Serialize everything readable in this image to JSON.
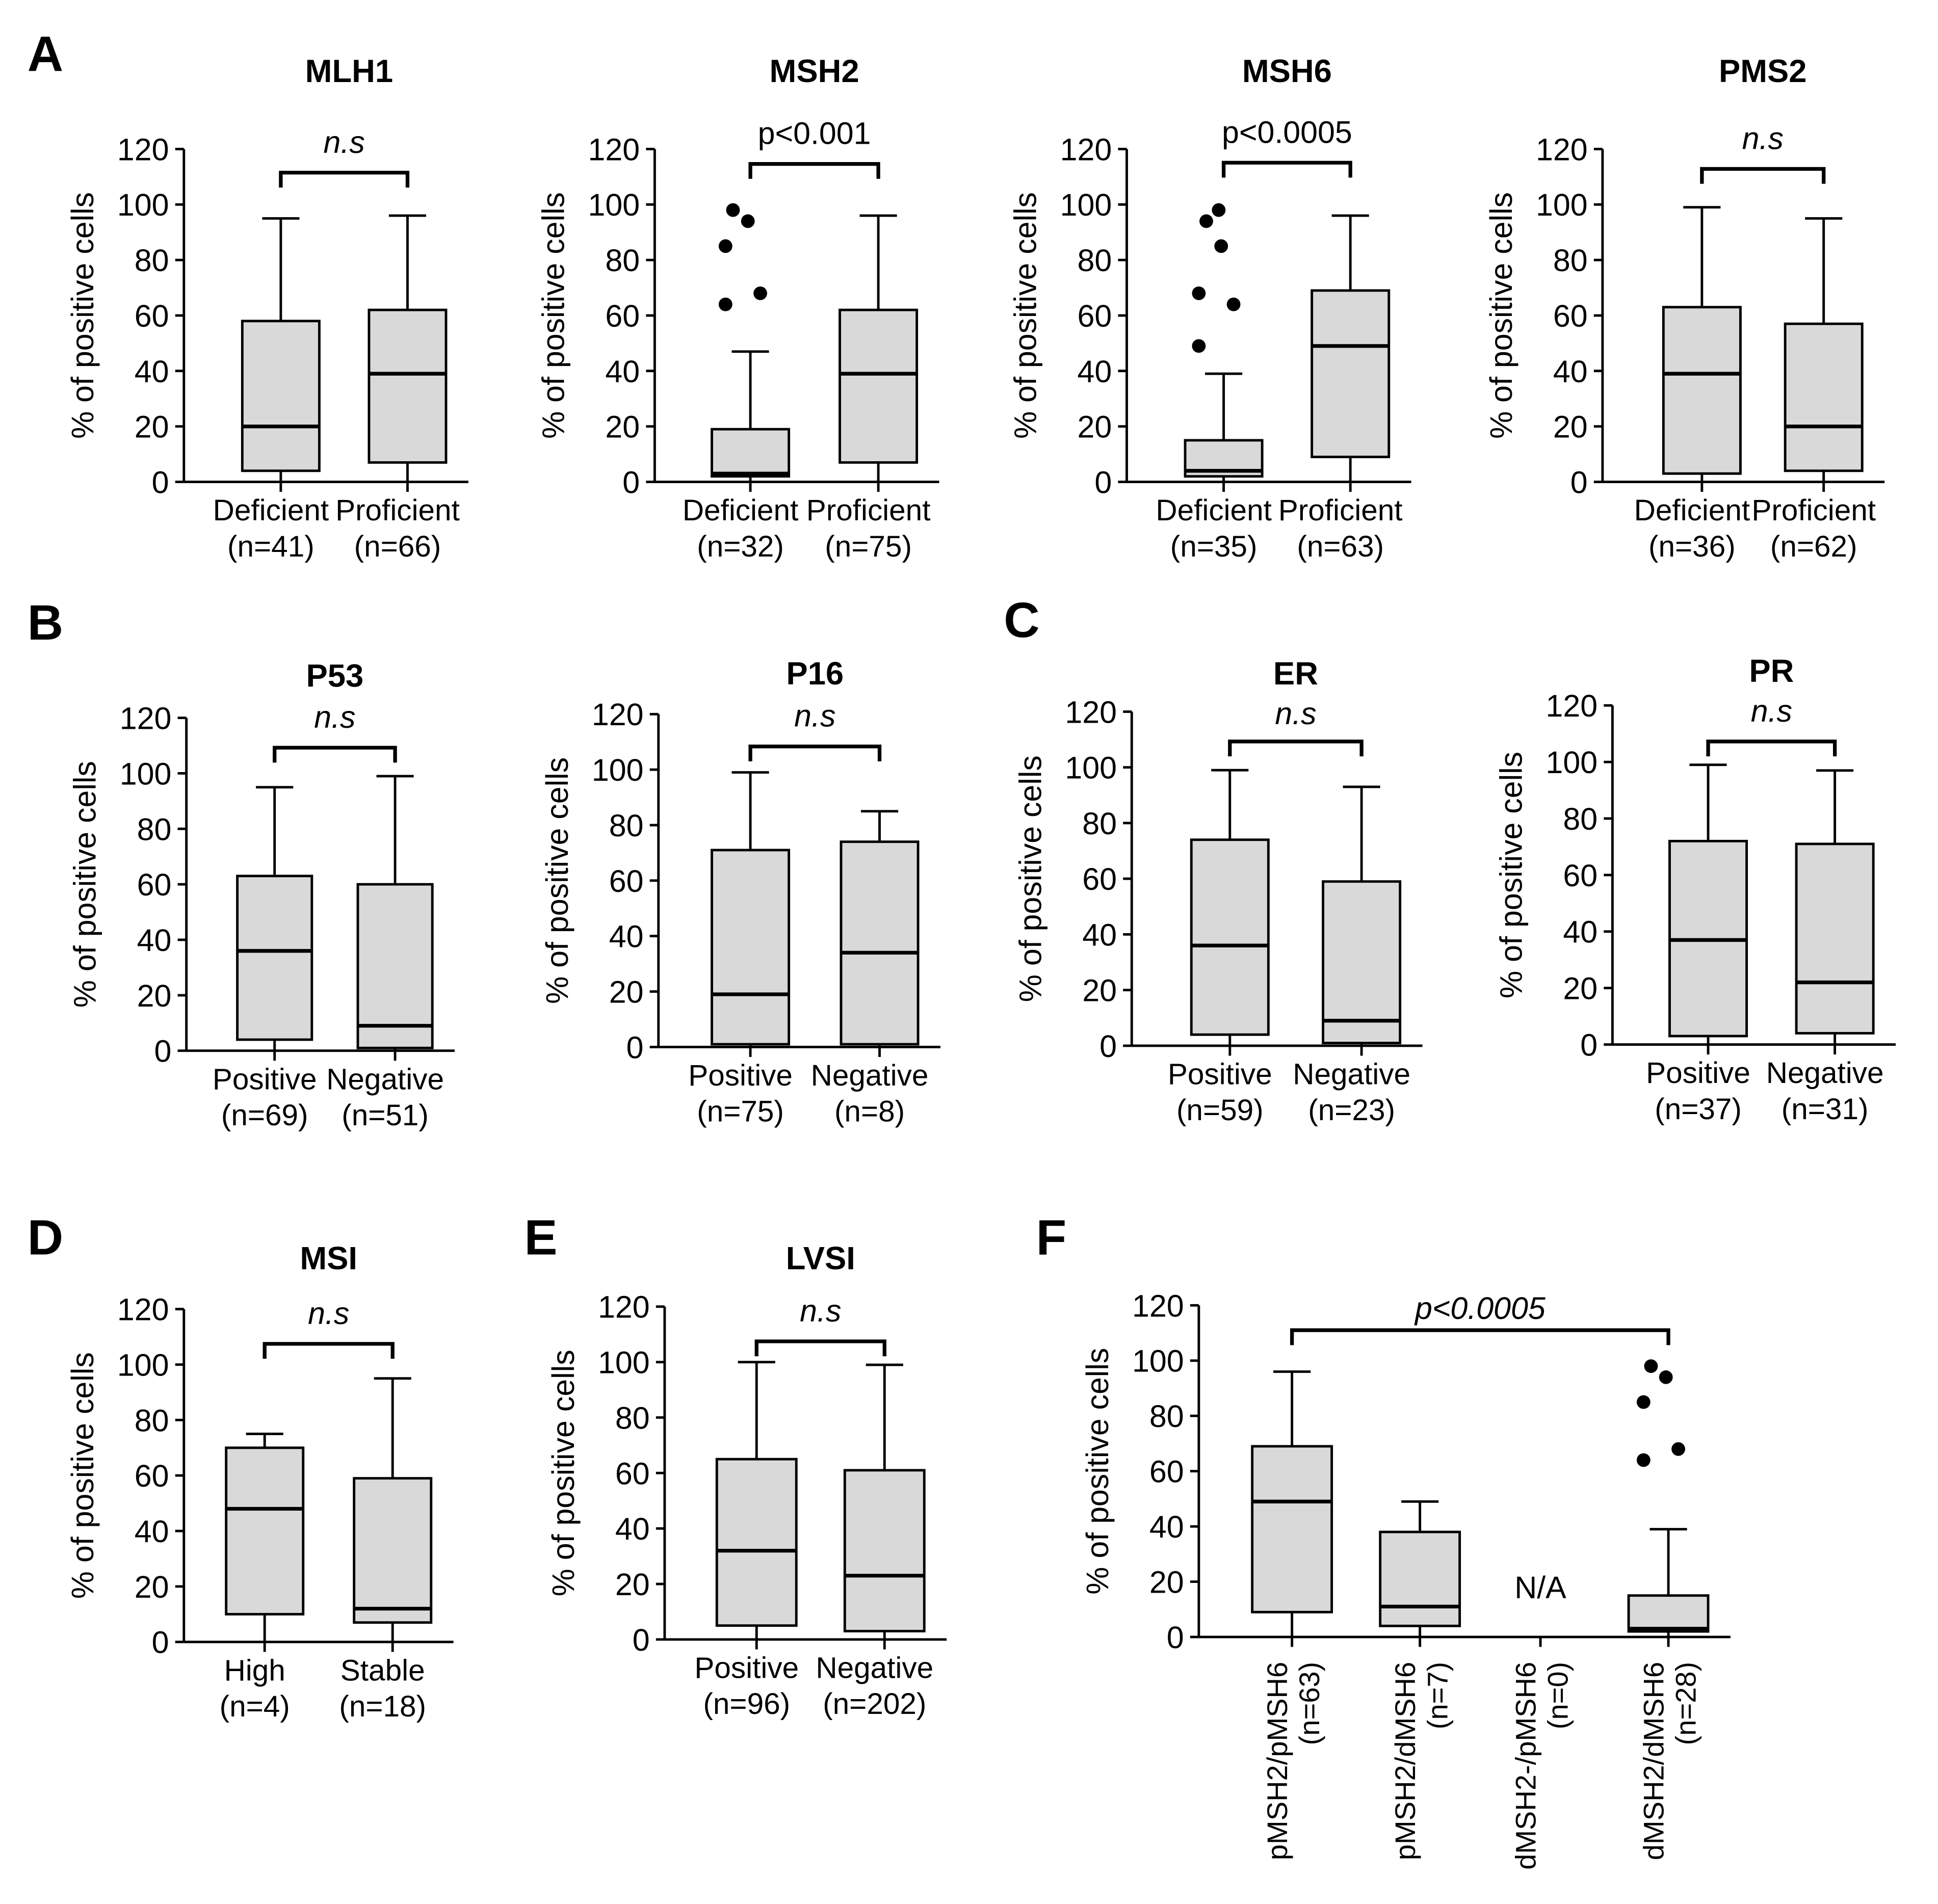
{
  "figure": {
    "y_axis_label": "% of positive cells",
    "y_ticks": [
      "0",
      "20",
      "40",
      "60",
      "80",
      "100",
      "120"
    ]
  },
  "panel_letters": [
    "A",
    "B",
    "C",
    "D",
    "E",
    "F"
  ],
  "colors": {
    "box_fill": "#d9d9d9",
    "stroke": "#000000",
    "background": "#ffffff"
  },
  "chart_data": [
    {
      "type": "boxplot",
      "panel": "A",
      "title": "MLH1",
      "ylim": [
        0,
        120
      ],
      "ylabel": "% of positive cells",
      "significance": "n.s",
      "sig_italic": true,
      "groups": [
        {
          "label": "Deficient",
          "n": "(n=41)",
          "min": 0,
          "q1": 4,
          "median": 20,
          "q3": 58,
          "max": 95,
          "outliers": []
        },
        {
          "label": "Proficient",
          "n": "(n=66)",
          "min": 0,
          "q1": 7,
          "median": 39,
          "q3": 62,
          "max": 96,
          "outliers": []
        }
      ]
    },
    {
      "type": "boxplot",
      "panel": "A",
      "title": "MSH2",
      "ylim": [
        0,
        120
      ],
      "ylabel": "% of positive cells",
      "significance": "p<0.001",
      "sig_italic": false,
      "groups": [
        {
          "label": "Deficient",
          "n": "(n=32)",
          "min": 0,
          "q1": 2,
          "median": 3,
          "q3": 19,
          "max": 47,
          "outliers": [
            64,
            68,
            85,
            94,
            98
          ]
        },
        {
          "label": "Proficient",
          "n": "(n=75)",
          "min": 0,
          "q1": 7,
          "median": 39,
          "q3": 62,
          "max": 96,
          "outliers": []
        }
      ]
    },
    {
      "type": "boxplot",
      "panel": "A",
      "title": "MSH6",
      "ylim": [
        0,
        120
      ],
      "ylabel": "% of positive cells",
      "significance": "p<0.0005",
      "sig_italic": false,
      "groups": [
        {
          "label": "Deficient",
          "n": "(n=35)",
          "min": 0,
          "q1": 2,
          "median": 4,
          "q3": 15,
          "max": 39,
          "outliers": [
            49,
            64,
            68,
            85,
            94,
            98
          ]
        },
        {
          "label": "Proficient",
          "n": "(n=63)",
          "min": 0,
          "q1": 9,
          "median": 49,
          "q3": 69,
          "max": 96,
          "outliers": []
        }
      ]
    },
    {
      "type": "boxplot",
      "panel": "A",
      "title": "PMS2",
      "ylim": [
        0,
        120
      ],
      "ylabel": "% of positive cells",
      "significance": "n.s",
      "sig_italic": true,
      "groups": [
        {
          "label": "Deficient",
          "n": "(n=36)",
          "min": 0,
          "q1": 3,
          "median": 39,
          "q3": 63,
          "max": 99,
          "outliers": []
        },
        {
          "label": "Proficient",
          "n": "(n=62)",
          "min": 0,
          "q1": 4,
          "median": 20,
          "q3": 57,
          "max": 95,
          "outliers": []
        }
      ]
    },
    {
      "type": "boxplot",
      "panel": "B",
      "title": "P53",
      "ylim": [
        0,
        120
      ],
      "ylabel": "% of positive cells",
      "significance": "n.s",
      "sig_italic": true,
      "groups": [
        {
          "label": "Positive",
          "n": "(n=69)",
          "min": 0,
          "q1": 4,
          "median": 36,
          "q3": 63,
          "max": 95,
          "outliers": []
        },
        {
          "label": "Negative",
          "n": "(n=51)",
          "min": 0,
          "q1": 1,
          "median": 9,
          "q3": 60,
          "max": 99,
          "outliers": []
        }
      ]
    },
    {
      "type": "boxplot",
      "panel": "B",
      "title": "P16",
      "ylim": [
        0,
        120
      ],
      "ylabel": "% of positive cells",
      "significance": "n.s",
      "sig_italic": true,
      "groups": [
        {
          "label": "Positive",
          "n": "(n=75)",
          "min": 0,
          "q1": 1,
          "median": 19,
          "q3": 71,
          "max": 99,
          "outliers": []
        },
        {
          "label": "Negative",
          "n": "(n=8)",
          "min": 0,
          "q1": 1,
          "median": 34,
          "q3": 74,
          "max": 85,
          "outliers": []
        }
      ]
    },
    {
      "type": "boxplot",
      "panel": "C",
      "title": "ER",
      "ylim": [
        0,
        120
      ],
      "ylabel": "% of positive cells",
      "significance": "n.s",
      "sig_italic": true,
      "groups": [
        {
          "label": "Positive",
          "n": "(n=59)",
          "min": 0,
          "q1": 4,
          "median": 36,
          "q3": 74,
          "max": 99,
          "outliers": []
        },
        {
          "label": "Negative",
          "n": "(n=23)",
          "min": 0,
          "q1": 1,
          "median": 9,
          "q3": 59,
          "max": 93,
          "outliers": []
        }
      ]
    },
    {
      "type": "boxplot",
      "panel": "C",
      "title": "PR",
      "ylim": [
        0,
        120
      ],
      "ylabel": "% of positive cells",
      "significance": "n.s",
      "sig_italic": true,
      "groups": [
        {
          "label": "Positive",
          "n": "(n=37)",
          "min": 0,
          "q1": 3,
          "median": 37,
          "q3": 72,
          "max": 99,
          "outliers": []
        },
        {
          "label": "Negative",
          "n": "(n=31)",
          "min": 0,
          "q1": 4,
          "median": 22,
          "q3": 71,
          "max": 97,
          "outliers": []
        }
      ]
    },
    {
      "type": "boxplot",
      "panel": "D",
      "title": "MSI",
      "ylim": [
        0,
        120
      ],
      "ylabel": "% of positive cells",
      "significance": "n.s",
      "sig_italic": true,
      "groups": [
        {
          "label": "High",
          "n": "(n=4)",
          "min": 0,
          "q1": 10,
          "median": 48,
          "q3": 70,
          "max": 75,
          "outliers": []
        },
        {
          "label": "Stable",
          "n": "(n=18)",
          "min": 0,
          "q1": 7,
          "median": 12,
          "q3": 59,
          "max": 95,
          "outliers": []
        }
      ]
    },
    {
      "type": "boxplot",
      "panel": "E",
      "title": "LVSI",
      "ylim": [
        0,
        120
      ],
      "ylabel": "% of positive cells",
      "significance": "n.s",
      "sig_italic": true,
      "groups": [
        {
          "label": "Positive",
          "n": "(n=96)",
          "min": 0,
          "q1": 5,
          "median": 32,
          "q3": 65,
          "max": 100,
          "outliers": []
        },
        {
          "label": "Negative",
          "n": "(n=202)",
          "min": 0,
          "q1": 3,
          "median": 23,
          "q3": 61,
          "max": 99,
          "outliers": []
        }
      ]
    },
    {
      "type": "boxplot",
      "panel": "F",
      "title": "",
      "ylim": [
        0,
        120
      ],
      "ylabel": "% of positive cells",
      "significance": "p<0.0005",
      "sig_italic": true,
      "na_label": "N/A",
      "groups": [
        {
          "label": "pMSH2/pMSH6",
          "n": "(n=63)",
          "min": 0,
          "q1": 9,
          "median": 49,
          "q3": 69,
          "max": 96,
          "outliers": []
        },
        {
          "label": "pMSH2/dMSH6",
          "n": "(n=7)",
          "min": 0,
          "q1": 4,
          "median": 11,
          "q3": 38,
          "max": 49,
          "outliers": []
        },
        {
          "label": "dMSH2-/pMSH6",
          "n": "(n=0)",
          "empty": true
        },
        {
          "label": "dMSH2/dMSH6",
          "n": "(n=28)",
          "min": 0,
          "q1": 2,
          "median": 3,
          "q3": 15,
          "max": 39,
          "outliers": [
            64,
            68,
            85,
            94,
            98
          ]
        }
      ]
    }
  ]
}
